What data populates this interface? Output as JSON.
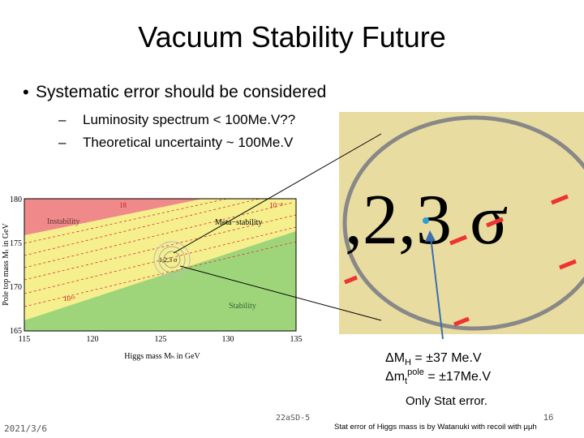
{
  "title": "Vacuum Stability Future",
  "bullets": [
    {
      "text": "Systematic error should be considered",
      "sub": [
        "Luminosity spectrum < 100Me.V??",
        "Theoretical uncertainty ~ 100Me.V"
      ]
    }
  ],
  "plot": {
    "xlabel": "Higgs mass Mₕ in GeV",
    "ylabel": "Pole top mass Mₜ in GeV",
    "xticks": [
      "115",
      "120",
      "125",
      "130",
      "135"
    ],
    "yticks": [
      "180",
      "175",
      "170",
      "165"
    ],
    "regions": [
      "Instability",
      "Meta−stability",
      "Stability"
    ],
    "contour": "1,2,3 σ",
    "line_labels": [
      "18",
      "10⁻⁸",
      "10¹⁶"
    ]
  },
  "zoom": {
    "label": ",2,3 σ"
  },
  "annotations": {
    "dmh": {
      "prefix": "ΔM",
      "sub": "H",
      "rest": " = ±37 Me.V"
    },
    "dmt": {
      "prefix": "Δm",
      "sub": "t",
      "sup": "pole",
      "rest": " = ±17Me.V"
    },
    "note": "Only Stat error."
  },
  "footer": {
    "date": "2021/3/6",
    "code": "22aSD-5",
    "page": "16",
    "credit": "Stat error of Higgs mass is by Watanuki with recoil with μμh"
  }
}
